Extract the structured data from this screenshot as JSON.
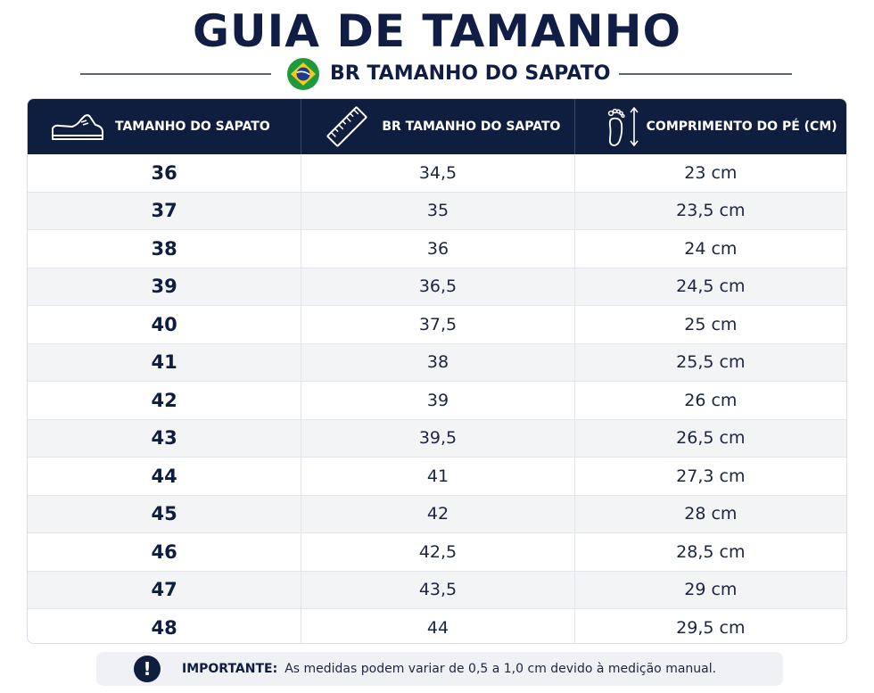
{
  "title": "GUIA DE TAMANHO",
  "subtitle": "BR TAMANHO DO SAPATO",
  "colors": {
    "navy": "#0f1d3f",
    "flag_green": "#1e9a3c",
    "flag_yellow": "#f5cc1d",
    "flag_blue": "#213a8f"
  },
  "icons": {
    "flag": "brazil-flag-icon",
    "shoe": "shoe-icon",
    "ruler": "ruler-icon",
    "foot": "footprint-icon",
    "notice": "exclamation-icon"
  },
  "table": {
    "headers": [
      "TAMANHO DO SAPATO",
      "BR TAMANHO DO SAPATO",
      "COMPRIMENTO DO PÉ (CM)"
    ],
    "rows": [
      [
        "36",
        "34,5",
        "23 cm"
      ],
      [
        "37",
        "35",
        "23,5 cm"
      ],
      [
        "38",
        "36",
        "24 cm"
      ],
      [
        "39",
        "36,5",
        "24,5 cm"
      ],
      [
        "40",
        "37,5",
        "25 cm"
      ],
      [
        "41",
        "38",
        "25,5 cm"
      ],
      [
        "42",
        "39",
        "26 cm"
      ],
      [
        "43",
        "39,5",
        "26,5 cm"
      ],
      [
        "44",
        "41",
        "27,3 cm"
      ],
      [
        "45",
        "42",
        "28 cm"
      ],
      [
        "46",
        "42,5",
        "28,5 cm"
      ],
      [
        "47",
        "43,5",
        "29 cm"
      ],
      [
        "48",
        "44",
        "29,5 cm"
      ]
    ]
  },
  "notice": {
    "icon_glyph": "!",
    "label": "IMPORTANTE:",
    "text": "As medidas podem variar de 0,5 a 1,0 cm devido à medição manual."
  }
}
